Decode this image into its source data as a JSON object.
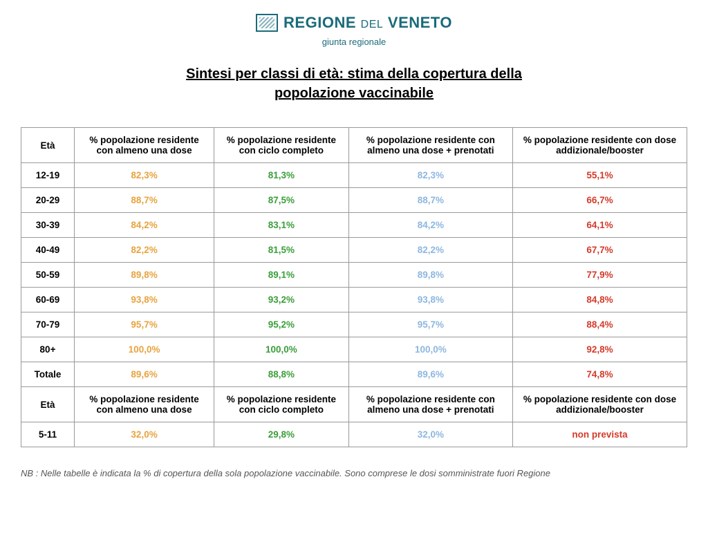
{
  "header": {
    "org_name_1": "REGIONE",
    "org_del": "DEL",
    "org_name_2": "VENETO",
    "subtitle": "giunta regionale"
  },
  "title_line1": "Sintesi per classi di età: stima della copertura della",
  "title_line2": "popolazione vaccinabile",
  "columns": {
    "age": "Età",
    "c1": "% popolazione residente con almeno una dose",
    "c2": "% popolazione residente con ciclo completo",
    "c3": "% popolazione residente con almeno una dose + prenotati",
    "c4": "% popolazione residente con dose addizionale/booster"
  },
  "col_colors": {
    "c1": "#e8a33d",
    "c2": "#3a9e3a",
    "c3": "#8db7e0",
    "c4": "#d43a2a"
  },
  "rows": [
    {
      "age": "12-19",
      "c1": "82,3%",
      "c2": "81,3%",
      "c3": "82,3%",
      "c4": "55,1%"
    },
    {
      "age": "20-29",
      "c1": "88,7%",
      "c2": "87,5%",
      "c3": "88,7%",
      "c4": "66,7%"
    },
    {
      "age": "30-39",
      "c1": "84,2%",
      "c2": "83,1%",
      "c3": "84,2%",
      "c4": "64,1%"
    },
    {
      "age": "40-49",
      "c1": "82,2%",
      "c2": "81,5%",
      "c3": "82,2%",
      "c4": "67,7%"
    },
    {
      "age": "50-59",
      "c1": "89,8%",
      "c2": "89,1%",
      "c3": "89,8%",
      "c4": "77,9%"
    },
    {
      "age": "60-69",
      "c1": "93,8%",
      "c2": "93,2%",
      "c3": "93,8%",
      "c4": "84,8%"
    },
    {
      "age": "70-79",
      "c1": "95,7%",
      "c2": "95,2%",
      "c3": "95,7%",
      "c4": "88,4%"
    },
    {
      "age": "80+",
      "c1": "100,0%",
      "c2": "100,0%",
      "c3": "100,0%",
      "c4": "92,8%"
    },
    {
      "age": "Totale",
      "c1": "89,6%",
      "c2": "88,8%",
      "c3": "89,6%",
      "c4": "74,8%"
    }
  ],
  "rows2": [
    {
      "age": "5-11",
      "c1": "32,0%",
      "c2": "29,8%",
      "c3": "32,0%",
      "c4": "non prevista"
    }
  ],
  "footnote": "NB : Nelle tabelle è indicata la % di copertura della sola popolazione vaccinabile. Sono comprese le dosi somministrate fuori Regione"
}
